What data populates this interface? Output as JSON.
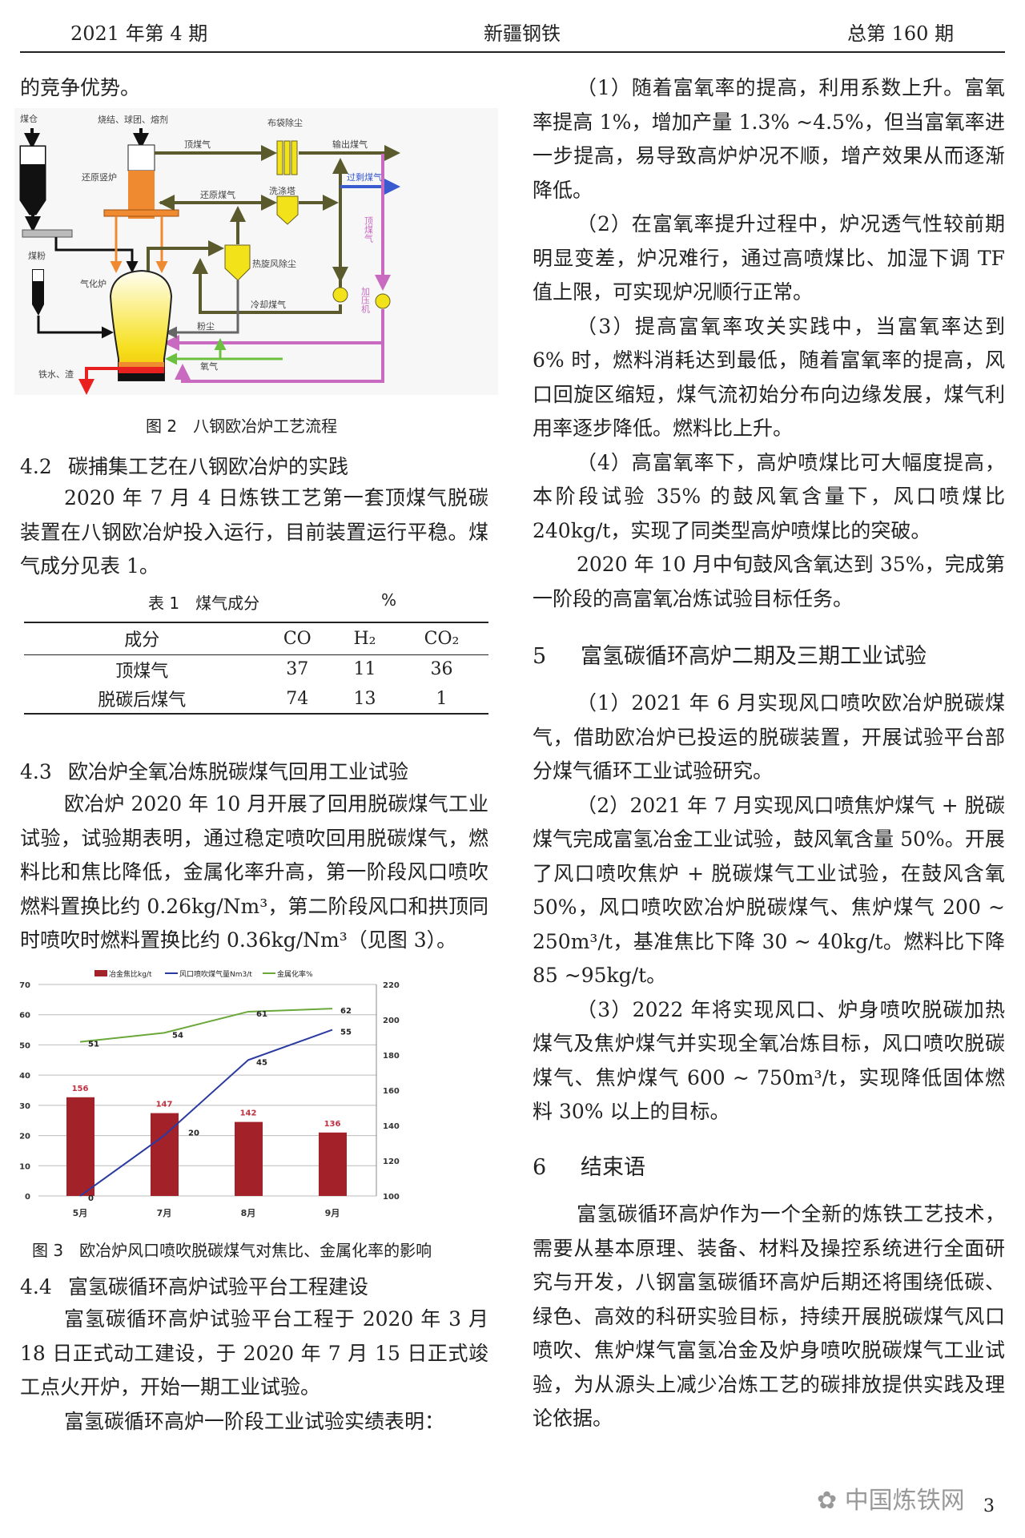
{
  "header": {
    "left": "2021 年第 4 期",
    "center": "新疆钢铁",
    "right": "总第 160 期"
  },
  "left": {
    "intro_tail": "的竞争优势。",
    "figure2": {
      "caption": "图 2　八钢欧冶炉工艺流程",
      "labels": {
        "coal_bin": "煤仓",
        "burden": "烧结、球团、熔剂",
        "shaft": "还原竖炉",
        "top_gas": "顶煤气",
        "bag_filter": "布袋除尘",
        "export_gas": "输出煤气",
        "excess_gas": "过剩煤气",
        "reducing_gas": "还原煤气",
        "scrubber": "洗涤塔",
        "cyclone": "热旋风除尘",
        "cooling_gas": "冷却煤气",
        "top_gas_vertical": "顶煤气",
        "compressor": "加压机",
        "dust": "粉尘",
        "oxygen": "氧气",
        "gasifier": "气化炉",
        "coal_powder": "煤粉",
        "hot_metal": "铁水、渣"
      }
    },
    "s42": {
      "num": "4.2",
      "title": "碳捕集工艺在八钢欧冶炉的实践",
      "para": "2020 年 7 月 4 日炼铁工艺第一套顶煤气脱碳装置在八钢欧冶炉投入运行，目前装置运行平稳。煤气成分见表 1。"
    },
    "table1": {
      "title": "表 1　煤气成分",
      "unit": "%",
      "headers": [
        "成分",
        "CO",
        "H₂",
        "CO₂"
      ],
      "rows": [
        [
          "顶煤气",
          "37",
          "11",
          "36"
        ],
        [
          "脱碳后煤气",
          "74",
          "13",
          "1"
        ]
      ]
    },
    "s43": {
      "num": "4.3",
      "title": "欧冶炉全氧冶炼脱碳煤气回用工业试验",
      "para": "欧冶炉 2020 年 10 月开展了回用脱碳煤气工业试验，试验期表明，通过稳定喷吹回用脱碳煤气，燃料比和焦比降低，金属化率升高，第一阶段风口喷吹燃料置换比约 0.26kg/Nm³，第二阶段风口和拱顶同时喷吹时燃料置换比约 0.36kg/Nm³（见图 3）。"
    },
    "figure3_caption": "图 3　欧冶炉风口喷吹脱碳煤气对焦比、金属化率的影响",
    "s44": {
      "num": "4.4",
      "title": "富氢碳循环高炉试验平台工程建设",
      "paras": [
        "富氢碳循环高炉试验平台工程于 2020 年 3 月 18 日正式动工建设，于 2020 年 7 月 15 日正式竣工点火开炉，开始一期工业试验。",
        "富氢碳循环高炉一阶段工业试验实绩表明："
      ]
    }
  },
  "right": {
    "paras_top": [
      "（1）随着富氧率的提高，利用系数上升。富氧率提高 1%，增加产量 1.3% ~4.5%，但当富氧率进一步提高，易导致高炉炉况不顺，增产效果从而逐渐降低。",
      "（2）在富氧率提升过程中，炉况透气性较前期明显变差，炉况难行，通过高喷煤比、加湿下调 TF 值上限，可实现炉况顺行正常。",
      "（3）提高富氧率攻关实践中，当富氧率达到 6% 时，燃料消耗达到最低，随着富氧率的提高，风口回旋区缩短，煤气流初始分布向边缘发展，煤气利用率逐步降低。燃料比上升。",
      "（4）高富氧率下，高炉喷煤比可大幅度提高，本阶段试验 35% 的鼓风氧含量下，风口喷煤比 240kg/t，实现了同类型高炉喷煤比的突破。",
      "2020 年 10 月中旬鼓风含氧达到 35%，完成第一阶段的高富氧冶炼试验目标任务。"
    ],
    "s5": {
      "num": "5",
      "title": "富氢碳循环高炉二期及三期工业试验",
      "paras": [
        "（1）2021 年 6 月实现风口喷吹欧冶炉脱碳煤气，借助欧冶炉已投运的脱碳装置，开展试验平台部分煤气循环工业试验研究。",
        "（2）2021 年 7 月实现风口喷焦炉煤气 + 脱碳煤气完成富氢冶金工业试验，鼓风氧含量 50%。开展了风口喷吹焦炉 + 脱碳煤气工业试验，在鼓风含氧 50%，风口喷吹欧冶炉脱碳煤气、焦炉煤气 200 ~ 250m³/t，基准焦比下降 30 ~ 40kg/t。燃料比下降 85 ~95kg/t。",
        "（3）2022 年将实现风口、炉身喷吹脱碳加热煤气及焦炉煤气并实现全氧冶炼目标，风口喷吹脱碳煤气、焦炉煤气 600 ~ 750m³/t，实现降低固体燃料 30% 以上的目标。"
      ]
    },
    "s6": {
      "num": "6",
      "title": "结束语",
      "para": "富氢碳循环高炉作为一个全新的炼铁工艺技术，需要从基本原理、装备、材料及操控系统进行全面研究与开发，八钢富氢碳循环高炉后期还将围绕低碳、绿色、高效的科研实验目标，持续开展脱碳煤气风口喷吹、焦炉煤气富氢冶金及炉身喷吹脱碳煤气工业试验，为从源头上减少冶炼工艺的碳排放提供实践及理论依据。"
    }
  },
  "footer": {
    "watermark": "中国炼铁网",
    "page": "3"
  },
  "chart_data": {
    "type": "bar+line",
    "categories": [
      "5月",
      "7月",
      "8月",
      "9月"
    ],
    "series": [
      {
        "name": "冶金焦比kg/t",
        "type": "bar",
        "axis": "right",
        "values": [
          156,
          147,
          142,
          136
        ],
        "color": "#a3222a"
      },
      {
        "name": "风口喷吹煤气量Nm3/t",
        "type": "line",
        "axis": "left",
        "values": [
          0,
          20,
          45,
          55
        ],
        "color": "#2b3aa0"
      },
      {
        "name": "金属化率%",
        "type": "line",
        "axis": "left",
        "values": [
          51,
          54,
          61,
          62
        ],
        "color": "#6aa83a"
      }
    ],
    "y_left": {
      "min": 0,
      "max": 70,
      "ticks": [
        0,
        10,
        20,
        30,
        40,
        50,
        60,
        70
      ]
    },
    "y_right": {
      "min": 100,
      "max": 220,
      "ticks": [
        100,
        120,
        140,
        160,
        180,
        200,
        220
      ]
    },
    "grid": true,
    "legend": "top"
  }
}
